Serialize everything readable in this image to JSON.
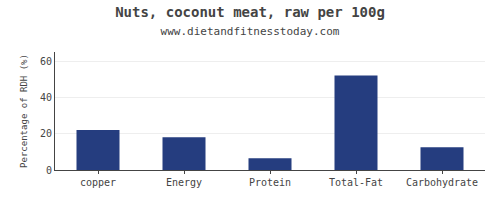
{
  "chart_data": {
    "type": "bar",
    "title": "Nuts, coconut meat, raw per 100g",
    "subtitle": "www.dietandfitnesstoday.com",
    "categories": [
      "copper",
      "Energy",
      "Protein",
      "Total-Fat",
      "Carbohydrate"
    ],
    "values": [
      22,
      18,
      6.5,
      52,
      12.5
    ],
    "color": "#253d7f",
    "ylabel": "Percentage of RDH (%)",
    "ylim": [
      0,
      65
    ],
    "yticks": [
      0,
      20,
      40,
      60
    ],
    "grid": true
  }
}
